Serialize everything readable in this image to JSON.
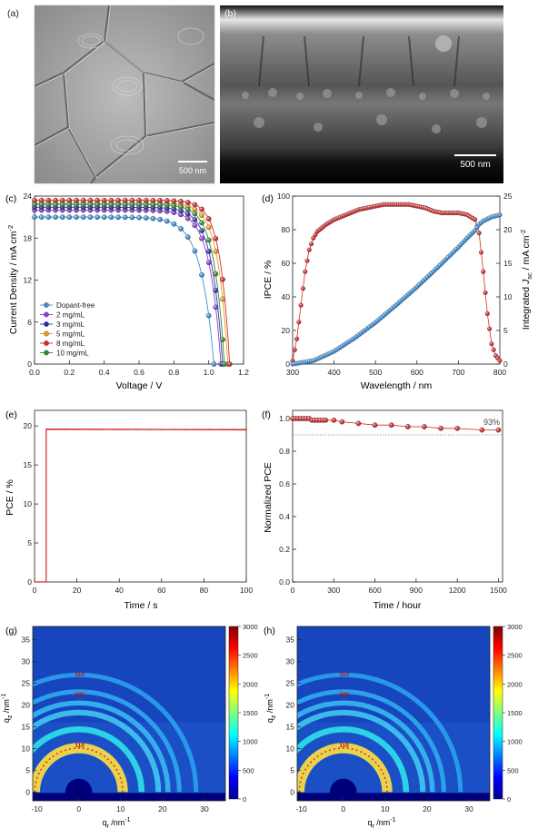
{
  "panels": {
    "a": {
      "label": "(a)",
      "scalebar": "500 nm"
    },
    "b": {
      "label": "(b)",
      "scalebar": "500 nm"
    },
    "c": {
      "label": "(c)",
      "xlabel": "Voltage / V",
      "ylabel": "Current Density / mA cm",
      "ylabel_sup": "-2",
      "x_ticks": [
        "0.0",
        "0.2",
        "0.4",
        "0.6",
        "0.8",
        "1.0",
        "1.2"
      ],
      "y_ticks": [
        "0",
        "6",
        "12",
        "18",
        "24"
      ],
      "legend": [
        "Dopant-free",
        "2 mg/mL",
        "3 mg/mL",
        "5 mg/mL",
        "8 mg/mL",
        "10 mg/mL"
      ]
    },
    "d": {
      "label": "(d)",
      "xlabel": "Wavelength / nm",
      "ylabel": "IPCE / %",
      "y2label_a": "Integrated",
      "y2label_j": "J",
      "y2label_sub": "sc",
      "y2label_b": " / mA cm",
      "y2label_sup": "-2",
      "x_ticks": [
        "300",
        "400",
        "500",
        "600",
        "700",
        "800"
      ],
      "y_ticks": [
        "0",
        "20",
        "40",
        "60",
        "80",
        "100"
      ],
      "y2_ticks": [
        "0",
        "5",
        "10",
        "15",
        "20",
        "25"
      ]
    },
    "e": {
      "label": "(e)",
      "xlabel": "Time / s",
      "ylabel": "PCE / %",
      "x_ticks": [
        "0",
        "20",
        "40",
        "60",
        "80",
        "100"
      ],
      "y_ticks": [
        "0",
        "5",
        "10",
        "15",
        "20"
      ]
    },
    "f": {
      "label": "(f)",
      "xlabel": "Time / hour",
      "ylabel": "Normalized PCE",
      "x_ticks": [
        "0",
        "300",
        "600",
        "900",
        "1200",
        "1500"
      ],
      "y_ticks": [
        "0.0",
        "0.2",
        "0.4",
        "0.6",
        "0.8",
        "1.0"
      ],
      "annotation": "93%"
    },
    "g": {
      "label": "(g)",
      "xlabel_base": "q",
      "xlabel_sub": "r",
      "xlabel_unit": " /nm",
      "xlabel_sup": "-1",
      "ylabel_base": "q",
      "ylabel_sub": "z",
      "ylabel_unit": " /nm",
      "ylabel_sup": "-1",
      "x_ticks": [
        "-10",
        "0",
        "10",
        "20",
        "30"
      ],
      "y_ticks": [
        "0",
        "5",
        "10",
        "15",
        "20",
        "25",
        "30",
        "35"
      ],
      "cbar_ticks": [
        "0",
        "500",
        "1000",
        "1500",
        "2000",
        "2500",
        "3000"
      ],
      "ring_labels": [
        "310",
        "220",
        "110"
      ]
    },
    "h": {
      "label": "(h)",
      "xlabel_base": "q",
      "xlabel_sub": "r",
      "xlabel_unit": " /nm",
      "xlabel_sup": "-1",
      "ylabel_base": "q",
      "ylabel_sub": "z",
      "ylabel_unit": " /nm",
      "ylabel_sup": "-1",
      "x_ticks": [
        "-10",
        "0",
        "10",
        "20",
        "30"
      ],
      "y_ticks": [
        "0",
        "5",
        "10",
        "15",
        "20",
        "25",
        "30",
        "35"
      ],
      "cbar_ticks": [
        "0",
        "500",
        "1000",
        "1500",
        "2000",
        "2500",
        "3000"
      ],
      "ring_labels": [
        "310",
        "220",
        "110"
      ]
    }
  },
  "chart_data": [
    {
      "panel": "c",
      "type": "line",
      "xlim": [
        0,
        1.2
      ],
      "ylim": [
        0,
        24
      ],
      "legend_position": "lower-left",
      "series": [
        {
          "name": "Dopant-free",
          "color": "#3b8fd9",
          "jsc": 21.0,
          "voc": 1.03,
          "k": 0.075
        },
        {
          "name": "2 mg/mL",
          "color": "#8a3fd1",
          "jsc": 22.0,
          "voc": 1.07,
          "k": 0.065
        },
        {
          "name": "3 mg/mL",
          "color": "#2b2fb0",
          "jsc": 22.4,
          "voc": 1.08,
          "k": 0.063
        },
        {
          "name": "5 mg/mL",
          "color": "#e89a1c",
          "jsc": 23.0,
          "voc": 1.11,
          "k": 0.058
        },
        {
          "name": "8 mg/mL",
          "color": "#d42a2a",
          "jsc": 23.4,
          "voc": 1.12,
          "k": 0.055
        },
        {
          "name": "10 mg/mL",
          "color": "#2f8a2f",
          "jsc": 22.8,
          "voc": 1.09,
          "k": 0.06
        }
      ]
    },
    {
      "panel": "d",
      "type": "line",
      "xlim": [
        300,
        800
      ],
      "ylim": [
        0,
        100
      ],
      "y2lim": [
        0,
        25
      ],
      "series": [
        {
          "name": "IPCE",
          "axis": "left",
          "color": "#d42a2a",
          "x": [
            300,
            310,
            320,
            330,
            340,
            350,
            360,
            380,
            400,
            420,
            440,
            460,
            480,
            500,
            520,
            540,
            560,
            580,
            600,
            620,
            640,
            660,
            680,
            700,
            720,
            740,
            750,
            760,
            770,
            780,
            790,
            800
          ],
          "y": [
            2,
            15,
            35,
            55,
            68,
            75,
            79,
            83,
            86,
            88,
            90,
            92,
            93,
            94,
            95,
            95,
            95,
            95,
            94,
            93,
            91,
            90,
            90,
            90,
            89,
            86,
            78,
            55,
            30,
            12,
            5,
            2
          ]
        },
        {
          "name": "Integrated Jsc",
          "axis": "right",
          "color": "#3b8fd9",
          "x": [
            300,
            350,
            400,
            450,
            500,
            550,
            600,
            650,
            700,
            720,
            740,
            750,
            760,
            780,
            800
          ],
          "y": [
            0,
            0.5,
            1.9,
            3.9,
            6.2,
            8.8,
            11.5,
            14.4,
            17.4,
            18.7,
            19.9,
            20.8,
            21.3,
            21.9,
            22.2
          ]
        }
      ]
    },
    {
      "panel": "e",
      "type": "line",
      "xlim": [
        0,
        100
      ],
      "ylim": [
        0,
        22
      ],
      "series": [
        {
          "name": "PCE",
          "color": "#d42a2a",
          "x": [
            0,
            5.5,
            5.5,
            6,
            100
          ],
          "y": [
            0,
            0,
            19.6,
            19.6,
            19.5
          ]
        }
      ]
    },
    {
      "panel": "f",
      "type": "scatter",
      "xlim": [
        0,
        1530
      ],
      "ylim": [
        0,
        1.05
      ],
      "reference_line": 0.9,
      "series": [
        {
          "name": "Normalized PCE",
          "color": "#d42a2a",
          "x": [
            0,
            20,
            40,
            60,
            80,
            100,
            120,
            140,
            160,
            180,
            200,
            220,
            240,
            300,
            360,
            480,
            600,
            720,
            840,
            960,
            1080,
            1200,
            1380,
            1500
          ],
          "y": [
            1.0,
            1.0,
            1.0,
            1.0,
            1.0,
            1.0,
            1.0,
            0.99,
            0.99,
            0.99,
            0.99,
            0.99,
            0.99,
            0.99,
            0.98,
            0.97,
            0.96,
            0.96,
            0.95,
            0.95,
            0.94,
            0.94,
            0.93,
            0.93
          ]
        }
      ]
    },
    {
      "panel": "g",
      "type": "heatmap",
      "xlim": [
        -11,
        35
      ],
      "ylim": [
        -2,
        38
      ],
      "clim": [
        0,
        3000
      ],
      "rings_q": [
        10.5,
        15,
        19,
        21.3,
        24,
        28
      ]
    },
    {
      "panel": "h",
      "type": "heatmap",
      "xlim": [
        -11,
        35
      ],
      "ylim": [
        -2,
        38
      ],
      "clim": [
        0,
        3000
      ],
      "rings_q": [
        10.5,
        15,
        19,
        21.3,
        24,
        28
      ]
    }
  ]
}
